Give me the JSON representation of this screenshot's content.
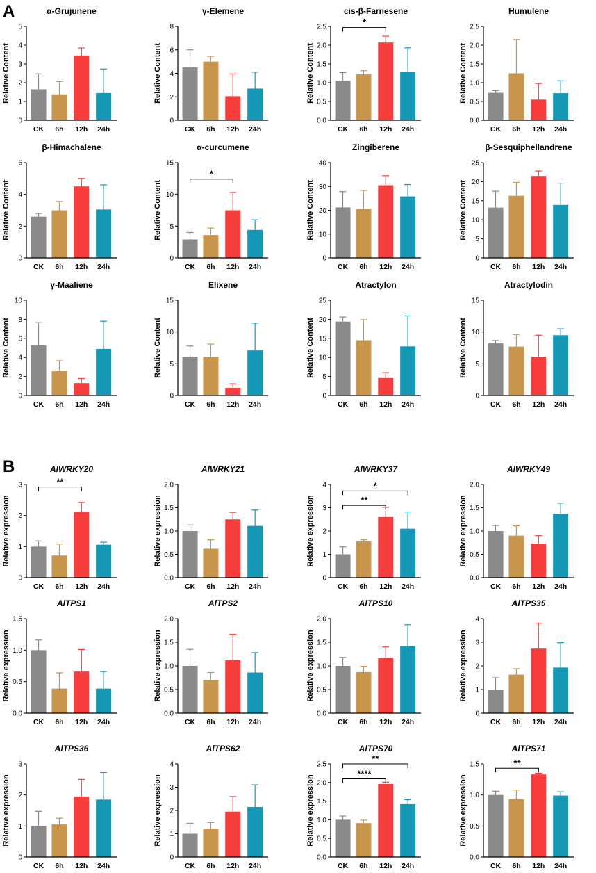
{
  "panels": [
    {
      "label": "A"
    },
    {
      "label": "B"
    }
  ],
  "colors": {
    "CK": "#8a8a8a",
    "6h": "#c8954c",
    "12h": "#f73c3c",
    "24h": "#1598b5",
    "CK_err": "#8a8a8a",
    "6h_err": "#c8954c",
    "12h_err": "#f73c3c",
    "24h_err": "#1598b5"
  },
  "chart_data": [
    {
      "type": "bar",
      "panel": "A",
      "title": "α-Grujunene",
      "ylabel": "Relative Content",
      "categories": [
        "CK",
        "6h",
        "12h",
        "24h"
      ],
      "values": [
        1.65,
        1.38,
        3.45,
        1.45
      ],
      "errors": [
        0.82,
        0.68,
        0.4,
        1.28
      ],
      "ylim": [
        0,
        5
      ],
      "yticks": [
        "0",
        "1",
        "2",
        "3",
        "4",
        "5"
      ],
      "significance": []
    },
    {
      "type": "bar",
      "panel": "A",
      "title": "γ-Elemene",
      "ylabel": "Relative Content",
      "categories": [
        "CK",
        "6h",
        "12h",
        "24h"
      ],
      "values": [
        4.5,
        5.0,
        2.05,
        2.7
      ],
      "errors": [
        1.5,
        0.45,
        1.9,
        1.4
      ],
      "ylim": [
        0,
        8
      ],
      "yticks": [
        "0",
        "2",
        "4",
        "6",
        "8"
      ],
      "significance": []
    },
    {
      "type": "bar",
      "panel": "A",
      "title": "cis-β-Farnesene",
      "ylabel": "Relative Content",
      "categories": [
        "CK",
        "6h",
        "12h",
        "24h"
      ],
      "values": [
        1.05,
        1.22,
        2.07,
        1.28
      ],
      "errors": [
        0.22,
        0.1,
        0.17,
        0.65
      ],
      "ylim": [
        0,
        2.5
      ],
      "yticks": [
        "0.0",
        "0.5",
        "1.0",
        "1.5",
        "2.0",
        "2.5"
      ],
      "significance": [
        {
          "from": 0,
          "to": 2,
          "label": "*",
          "y": 2.47
        }
      ]
    },
    {
      "type": "bar",
      "panel": "A",
      "title": "Humulene",
      "ylabel": "Relative Content",
      "categories": [
        "CK",
        "6h",
        "12h",
        "24h"
      ],
      "values": [
        0.73,
        1.25,
        0.55,
        0.72
      ],
      "errors": [
        0.06,
        0.9,
        0.43,
        0.33
      ],
      "ylim": [
        0,
        2.5
      ],
      "yticks": [
        "0.0",
        "0.5",
        "1.0",
        "1.5",
        "2.0",
        "2.5"
      ],
      "significance": []
    },
    {
      "type": "bar",
      "panel": "A",
      "title": "β-Himachalene",
      "ylabel": "Relative Content",
      "categories": [
        "CK",
        "6h",
        "12h",
        "24h"
      ],
      "values": [
        2.6,
        3.0,
        4.5,
        3.05
      ],
      "errors": [
        0.2,
        0.55,
        0.5,
        1.55
      ],
      "ylim": [
        0,
        6
      ],
      "yticks": [
        "0",
        "2",
        "4",
        "6"
      ],
      "significance": []
    },
    {
      "type": "bar",
      "panel": "A",
      "title": "α-curcumene",
      "ylabel": "Relative Content",
      "categories": [
        "CK",
        "6h",
        "12h",
        "24h"
      ],
      "values": [
        2.9,
        3.6,
        7.5,
        4.4
      ],
      "errors": [
        1.1,
        1.1,
        2.8,
        1.6
      ],
      "ylim": [
        0,
        15
      ],
      "yticks": [
        "0",
        "5",
        "10",
        "15"
      ],
      "significance": [
        {
          "from": 0,
          "to": 2,
          "label": "*",
          "y": 12.4
        }
      ]
    },
    {
      "type": "bar",
      "panel": "A",
      "title": "Zingiberene",
      "ylabel": "Relative Content",
      "categories": [
        "CK",
        "6h",
        "12h",
        "24h"
      ],
      "values": [
        21.2,
        20.6,
        30.5,
        25.8
      ],
      "errors": [
        6.6,
        7.7,
        4.0,
        5.0
      ],
      "ylim": [
        0,
        40
      ],
      "yticks": [
        "0",
        "10",
        "20",
        "30",
        "40"
      ],
      "significance": []
    },
    {
      "type": "bar",
      "panel": "A",
      "title": "β-Sesquiphellandrene",
      "ylabel": "Relative Content",
      "categories": [
        "CK",
        "6h",
        "12h",
        "24h"
      ],
      "values": [
        13.2,
        16.3,
        21.5,
        13.9
      ],
      "errors": [
        4.3,
        3.5,
        1.3,
        5.7
      ],
      "ylim": [
        0,
        25
      ],
      "yticks": [
        "0",
        "5",
        "10",
        "15",
        "20",
        "25"
      ],
      "significance": []
    },
    {
      "type": "bar",
      "panel": "A",
      "title": "γ-Maaliene",
      "ylabel": "Relative Content",
      "categories": [
        "CK",
        "6h",
        "12h",
        "24h"
      ],
      "values": [
        5.3,
        2.55,
        1.3,
        4.9
      ],
      "errors": [
        2.35,
        1.1,
        0.5,
        2.9
      ],
      "ylim": [
        0,
        10
      ],
      "yticks": [
        "0",
        "2",
        "4",
        "6",
        "8",
        "10"
      ],
      "significance": []
    },
    {
      "type": "bar",
      "panel": "A",
      "title": "Elixene",
      "ylabel": "Relative Content",
      "categories": [
        "CK",
        "6h",
        "12h",
        "24h"
      ],
      "values": [
        6.1,
        6.1,
        1.2,
        7.1
      ],
      "errors": [
        1.7,
        2.0,
        0.65,
        4.3
      ],
      "ylim": [
        0,
        15
      ],
      "yticks": [
        "0",
        "5",
        "10",
        "15"
      ],
      "significance": []
    },
    {
      "type": "bar",
      "panel": "A",
      "title": "Atractylon",
      "ylabel": "Relative Content",
      "categories": [
        "CK",
        "6h",
        "12h",
        "24h"
      ],
      "values": [
        19.4,
        14.5,
        4.6,
        12.9
      ],
      "errors": [
        1.2,
        5.4,
        1.4,
        8.0
      ],
      "ylim": [
        0,
        25
      ],
      "yticks": [
        "0",
        "5",
        "10",
        "15",
        "20",
        "25"
      ],
      "significance": []
    },
    {
      "type": "bar",
      "panel": "A",
      "title": "Atractylodin",
      "ylabel": "Relative Content",
      "categories": [
        "CK",
        "6h",
        "12h",
        "24h"
      ],
      "values": [
        8.2,
        7.7,
        6.1,
        9.5
      ],
      "errors": [
        0.45,
        1.9,
        3.4,
        1.0
      ],
      "ylim": [
        0,
        15
      ],
      "yticks": [
        "0",
        "5",
        "10",
        "15"
      ],
      "significance": []
    },
    {
      "type": "bar",
      "panel": "B",
      "title": "AlWRKY20",
      "ylabel": "Relative expression",
      "categories": [
        "CK",
        "6h",
        "12h",
        "24h"
      ],
      "values": [
        1.0,
        0.71,
        2.12,
        1.06
      ],
      "errors": [
        0.18,
        0.37,
        0.3,
        0.08
      ],
      "ylim": [
        0,
        3
      ],
      "yticks": [
        "0",
        "1",
        "2",
        "3"
      ],
      "significance": [
        {
          "from": 0,
          "to": 2,
          "label": "**",
          "y": 2.92
        }
      ]
    },
    {
      "type": "bar",
      "panel": "B",
      "title": "AlWRKY21",
      "ylabel": "Relative expression",
      "categories": [
        "CK",
        "6h",
        "12h",
        "24h"
      ],
      "values": [
        1.0,
        0.62,
        1.25,
        1.11
      ],
      "errors": [
        0.13,
        0.19,
        0.15,
        0.34
      ],
      "ylim": [
        0,
        2
      ],
      "yticks": [
        "0.0",
        "0.5",
        "1.0",
        "1.5",
        "2.0"
      ],
      "significance": []
    },
    {
      "type": "bar",
      "panel": "B",
      "title": "AlWRKY37",
      "ylabel": "Relative expression",
      "categories": [
        "CK",
        "6h",
        "12h",
        "24h"
      ],
      "values": [
        1.0,
        1.55,
        2.6,
        2.1
      ],
      "errors": [
        0.32,
        0.07,
        0.42,
        0.72
      ],
      "ylim": [
        0,
        4
      ],
      "yticks": [
        "0",
        "1",
        "2",
        "3",
        "4"
      ],
      "significance": [
        {
          "from": 0,
          "to": 2,
          "label": "**",
          "y": 3.1
        },
        {
          "from": 0,
          "to": 3,
          "label": "*",
          "y": 3.72
        }
      ]
    },
    {
      "type": "bar",
      "panel": "B",
      "title": "AlWRKY49",
      "ylabel": "Relative expression",
      "categories": [
        "CK",
        "6h",
        "12h",
        "24h"
      ],
      "values": [
        1.0,
        0.9,
        0.73,
        1.37
      ],
      "errors": [
        0.12,
        0.21,
        0.17,
        0.23
      ],
      "ylim": [
        0,
        2
      ],
      "yticks": [
        "0.0",
        "0.5",
        "1.0",
        "1.5",
        "2.0"
      ],
      "significance": []
    },
    {
      "type": "bar",
      "panel": "B",
      "title": "AlTPS1",
      "ylabel": "Relative expression",
      "categories": [
        "CK",
        "6h",
        "12h",
        "24h"
      ],
      "values": [
        1.0,
        0.39,
        0.66,
        0.39
      ],
      "errors": [
        0.16,
        0.25,
        0.35,
        0.27
      ],
      "ylim": [
        0,
        1.5
      ],
      "yticks": [
        "0.0",
        "0.5",
        "1.0",
        "1.5"
      ],
      "significance": []
    },
    {
      "type": "bar",
      "panel": "B",
      "title": "AlTPS2",
      "ylabel": "Relative expression",
      "categories": [
        "CK",
        "6h",
        "12h",
        "24h"
      ],
      "values": [
        1.0,
        0.7,
        1.12,
        0.86
      ],
      "errors": [
        0.35,
        0.16,
        0.55,
        0.42
      ],
      "ylim": [
        0,
        2
      ],
      "yticks": [
        "0.0",
        "0.5",
        "1.0",
        "1.5",
        "2.0"
      ],
      "significance": []
    },
    {
      "type": "bar",
      "panel": "B",
      "title": "AlTPS10",
      "ylabel": "Relative expression",
      "categories": [
        "CK",
        "6h",
        "12h",
        "24h"
      ],
      "values": [
        1.0,
        0.87,
        1.17,
        1.42
      ],
      "errors": [
        0.18,
        0.12,
        0.23,
        0.45
      ],
      "ylim": [
        0,
        2
      ],
      "yticks": [
        "0.0",
        "0.5",
        "1.0",
        "1.5",
        "2.0"
      ],
      "significance": []
    },
    {
      "type": "bar",
      "panel": "B",
      "title": "AlTPS35",
      "ylabel": "Relative expression",
      "categories": [
        "CK",
        "6h",
        "12h",
        "24h"
      ],
      "values": [
        1.0,
        1.63,
        2.73,
        1.93
      ],
      "errors": [
        0.5,
        0.25,
        1.08,
        1.05
      ],
      "ylim": [
        0,
        4
      ],
      "yticks": [
        "0",
        "1",
        "2",
        "3",
        "4"
      ],
      "significance": []
    },
    {
      "type": "bar",
      "panel": "B",
      "title": "AlTPS36",
      "ylabel": "Relative expression",
      "categories": [
        "CK",
        "6h",
        "12h",
        "24h"
      ],
      "values": [
        1.0,
        1.05,
        1.95,
        1.85
      ],
      "errors": [
        0.47,
        0.2,
        0.55,
        0.87
      ],
      "ylim": [
        0,
        3
      ],
      "yticks": [
        "0",
        "1",
        "2",
        "3"
      ],
      "significance": []
    },
    {
      "type": "bar",
      "panel": "B",
      "title": "AlTPS62",
      "ylabel": "Relative expression",
      "categories": [
        "CK",
        "6h",
        "12h",
        "24h"
      ],
      "values": [
        1.0,
        1.22,
        1.95,
        2.15
      ],
      "errors": [
        0.45,
        0.26,
        0.65,
        0.95
      ],
      "ylim": [
        0,
        4
      ],
      "yticks": [
        "0",
        "1",
        "2",
        "3",
        "4"
      ],
      "significance": []
    },
    {
      "type": "bar",
      "panel": "B",
      "title": "AlTPS70",
      "ylabel": "Relative expression",
      "categories": [
        "CK",
        "6h",
        "12h",
        "24h"
      ],
      "values": [
        1.0,
        0.91,
        1.96,
        1.42
      ],
      "errors": [
        0.1,
        0.08,
        0.05,
        0.12
      ],
      "ylim": [
        0,
        2.5
      ],
      "yticks": [
        "0.0",
        "0.5",
        "1.0",
        "1.5",
        "2.0",
        "2.5"
      ],
      "significance": [
        {
          "from": 0,
          "to": 2,
          "label": "****",
          "y": 2.1
        },
        {
          "from": 0,
          "to": 3,
          "label": "**",
          "y": 2.5
        }
      ]
    },
    {
      "type": "bar",
      "panel": "B",
      "title": "AlTPS71",
      "ylabel": "Relative expression",
      "categories": [
        "CK",
        "6h",
        "12h",
        "24h"
      ],
      "values": [
        1.0,
        0.93,
        1.33,
        0.99
      ],
      "errors": [
        0.06,
        0.15,
        0.02,
        0.06
      ],
      "ylim": [
        0,
        1.5
      ],
      "yticks": [
        "0.0",
        "0.5",
        "1.0",
        "1.5"
      ],
      "significance": [
        {
          "from": 0,
          "to": 2,
          "label": "**",
          "y": 1.43
        }
      ]
    }
  ]
}
